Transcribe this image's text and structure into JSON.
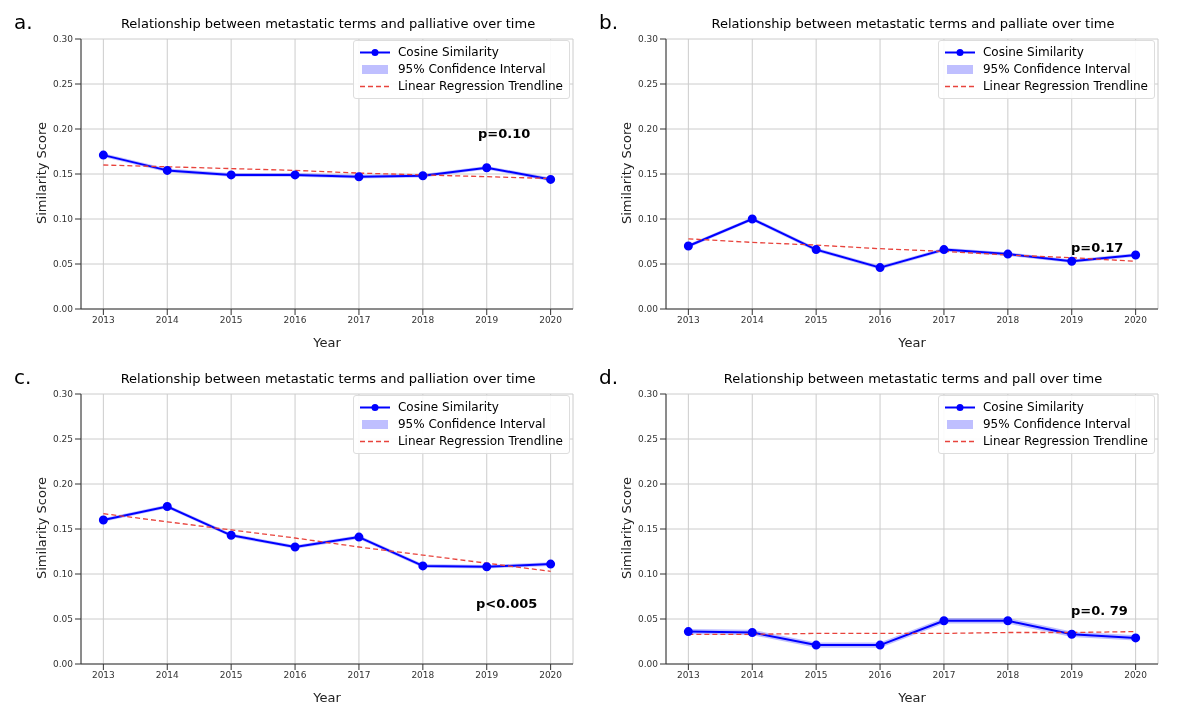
{
  "chart_data": [
    {
      "type": "line",
      "title": "Relationship between metastatic terms and palliative over time",
      "xlabel": "Year",
      "ylabel": "Similarity Score",
      "categories": [
        "2013",
        "2014",
        "2015",
        "2016",
        "2017",
        "2018",
        "2019",
        "2020"
      ],
      "ylim": [
        0,
        0.3
      ],
      "yticks": [
        {
          "value": 0,
          "label": "0.00"
        },
        {
          "value": 0.05,
          "label": "0.05"
        },
        {
          "value": 0.1,
          "label": "0.10"
        },
        {
          "value": 0.15,
          "label": "0.15"
        },
        {
          "value": 0.2,
          "label": "0.20"
        },
        {
          "value": 0.25,
          "label": "0.25"
        },
        {
          "value": 0.3,
          "label": "0.30"
        }
      ],
      "grid": true,
      "legend": "top right",
      "series": [
        {
          "name": "Cosine Similarity",
          "color": "#0000ff",
          "marker": "circle",
          "values": [
            0.171,
            0.154,
            0.149,
            0.149,
            0.147,
            0.148,
            0.157,
            0.144
          ],
          "lower": [
            0.169,
            0.152,
            0.147,
            0.147,
            0.145,
            0.146,
            0.155,
            0.142
          ],
          "upper": [
            0.173,
            0.156,
            0.151,
            0.151,
            0.149,
            0.15,
            0.159,
            0.146
          ]
        },
        {
          "name": "Linear Regression Trendline",
          "color": "#e8433c",
          "marker": "none",
          "line_style": "dashed",
          "values": [
            0.16,
            0.158,
            0.156,
            0.154,
            0.151,
            0.149,
            0.147,
            0.145
          ]
        }
      ],
      "annotations": [
        "a.",
        "p=0.10",
        "95% Confidence Interval"
      ]
    },
    {
      "type": "line",
      "title": "Relationship between metastatic terms and palliate over time",
      "xlabel": "Year",
      "ylabel": "Similarity Score",
      "categories": [
        "2013",
        "2014",
        "2015",
        "2016",
        "2017",
        "2018",
        "2019",
        "2020"
      ],
      "ylim": [
        0,
        0.3
      ],
      "yticks": [
        {
          "value": 0,
          "label": "0.00"
        },
        {
          "value": 0.05,
          "label": "0.05"
        },
        {
          "value": 0.1,
          "label": "0.10"
        },
        {
          "value": 0.15,
          "label": "0.15"
        },
        {
          "value": 0.2,
          "label": "0.20"
        },
        {
          "value": 0.25,
          "label": "0.25"
        },
        {
          "value": 0.3,
          "label": "0.30"
        }
      ],
      "grid": true,
      "legend": "top right",
      "series": [
        {
          "name": "Cosine Similarity",
          "color": "#0000ff",
          "marker": "circle",
          "values": [
            0.07,
            0.1,
            0.066,
            0.046,
            0.066,
            0.061,
            0.053,
            0.06
          ],
          "lower": [
            0.068,
            0.098,
            0.064,
            0.044,
            0.064,
            0.059,
            0.051,
            0.058
          ],
          "upper": [
            0.072,
            0.102,
            0.068,
            0.048,
            0.068,
            0.063,
            0.055,
            0.062
          ]
        },
        {
          "name": "Linear Regression Trendline",
          "color": "#e8433c",
          "marker": "none",
          "line_style": "dashed",
          "values": [
            0.078,
            0.074,
            0.071,
            0.067,
            0.064,
            0.06,
            0.057,
            0.053
          ]
        }
      ],
      "annotations": [
        "b.",
        "p=0.17",
        "95% Confidence Interval"
      ]
    },
    {
      "type": "line",
      "title": "Relationship between metastatic terms and palliation over time",
      "xlabel": "Year",
      "ylabel": "Similarity Score",
      "categories": [
        "2013",
        "2014",
        "2015",
        "2016",
        "2017",
        "2018",
        "2019",
        "2020"
      ],
      "ylim": [
        0,
        0.3
      ],
      "yticks": [
        {
          "value": 0,
          "label": "0.00"
        },
        {
          "value": 0.05,
          "label": "0.05"
        },
        {
          "value": 0.1,
          "label": "0.10"
        },
        {
          "value": 0.15,
          "label": "0.15"
        },
        {
          "value": 0.2,
          "label": "0.20"
        },
        {
          "value": 0.25,
          "label": "0.25"
        },
        {
          "value": 0.3,
          "label": "0.30"
        }
      ],
      "grid": true,
      "legend": "top right",
      "series": [
        {
          "name": "Cosine Similarity",
          "color": "#0000ff",
          "marker": "circle",
          "values": [
            0.16,
            0.175,
            0.143,
            0.13,
            0.141,
            0.109,
            0.108,
            0.111
          ],
          "lower": [
            0.158,
            0.173,
            0.141,
            0.128,
            0.139,
            0.107,
            0.106,
            0.109
          ],
          "upper": [
            0.162,
            0.177,
            0.145,
            0.132,
            0.143,
            0.111,
            0.11,
            0.113
          ]
        },
        {
          "name": "Linear Regression Trendline",
          "color": "#e8433c",
          "marker": "none",
          "line_style": "dashed",
          "values": [
            0.167,
            0.158,
            0.149,
            0.14,
            0.13,
            0.121,
            0.112,
            0.103
          ]
        }
      ],
      "annotations": [
        "c.",
        "p<0.005",
        "95% Confidence Interval"
      ]
    },
    {
      "type": "line",
      "title": "Relationship between metastatic terms and pall over time",
      "xlabel": "Year",
      "ylabel": "Similarity Score",
      "categories": [
        "2013",
        "2014",
        "2015",
        "2016",
        "2017",
        "2018",
        "2019",
        "2020"
      ],
      "ylim": [
        0,
        0.3
      ],
      "yticks": [
        {
          "value": 0,
          "label": "0.00"
        },
        {
          "value": 0.05,
          "label": "0.05"
        },
        {
          "value": 0.1,
          "label": "0.10"
        },
        {
          "value": 0.15,
          "label": "0.15"
        },
        {
          "value": 0.2,
          "label": "0.20"
        },
        {
          "value": 0.25,
          "label": "0.25"
        },
        {
          "value": 0.3,
          "label": "0.30"
        }
      ],
      "grid": true,
      "legend": "top right",
      "series": [
        {
          "name": "Cosine Similarity",
          "color": "#0000ff",
          "marker": "circle",
          "values": [
            0.036,
            0.035,
            0.021,
            0.021,
            0.048,
            0.048,
            0.033,
            0.029
          ],
          "lower": [
            0.033,
            0.032,
            0.018,
            0.018,
            0.045,
            0.045,
            0.03,
            0.026
          ],
          "upper": [
            0.039,
            0.038,
            0.024,
            0.024,
            0.051,
            0.051,
            0.036,
            0.032
          ]
        },
        {
          "name": "Linear Regression Trendline",
          "color": "#e8433c",
          "marker": "none",
          "line_style": "dashed",
          "values": [
            0.033,
            0.033,
            0.034,
            0.034,
            0.034,
            0.035,
            0.035,
            0.036
          ]
        }
      ],
      "annotations": [
        "d.",
        "p=0. 79",
        "95% Confidence Interval"
      ]
    }
  ]
}
